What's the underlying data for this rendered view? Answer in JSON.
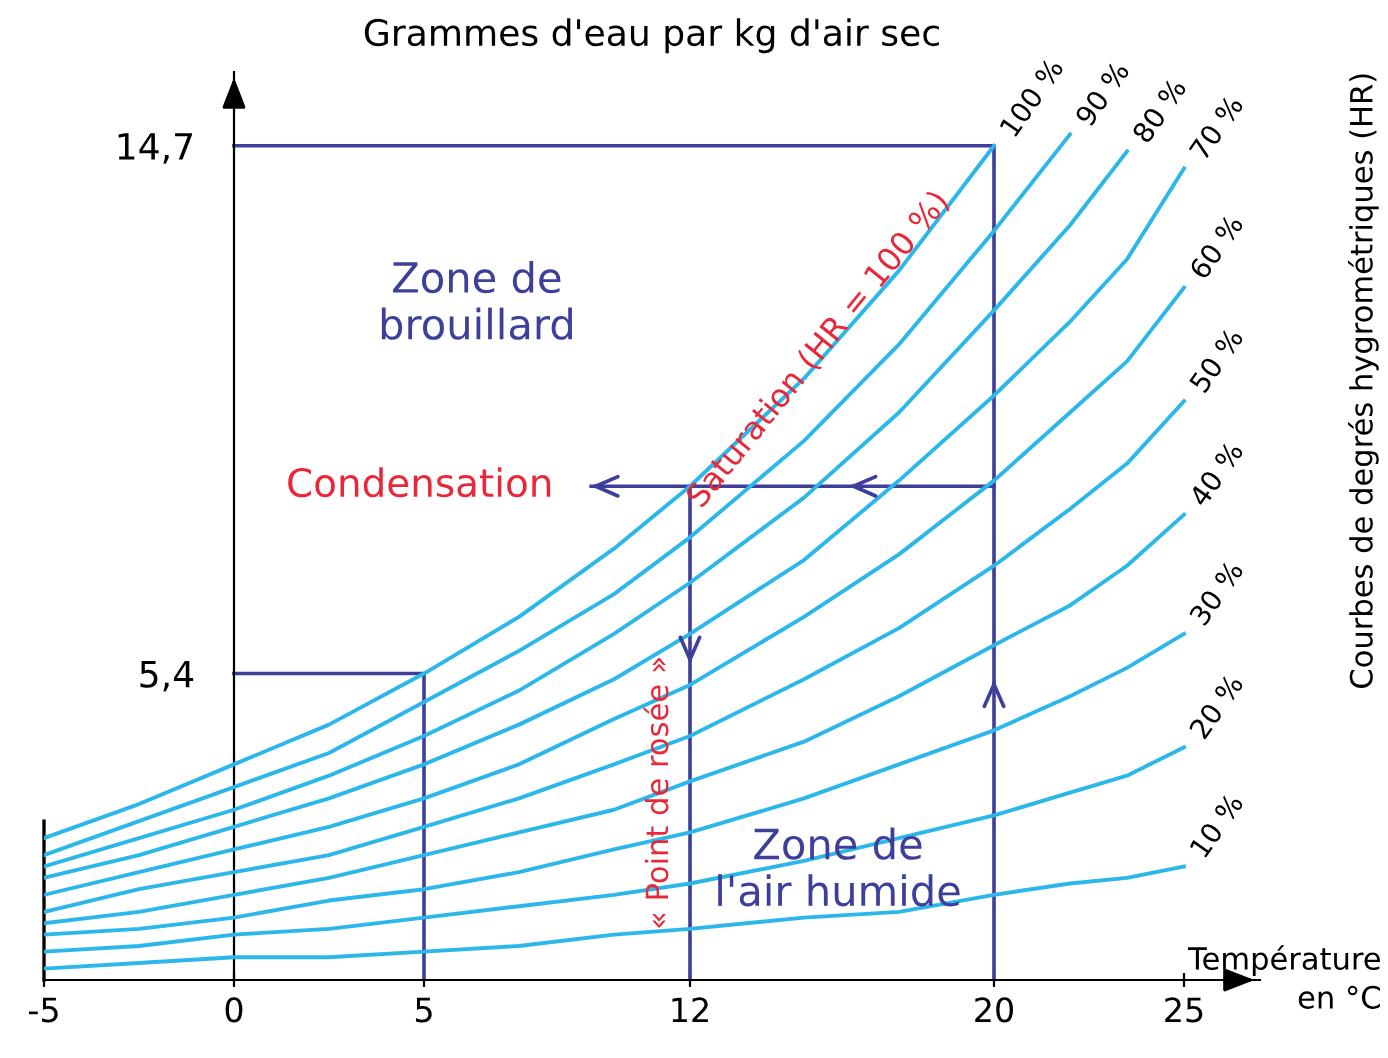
{
  "chart_data": {
    "type": "line",
    "xlabel": "Température\nen °C",
    "ylabel": "Grammes d'eau par kg d'air sec",
    "y2label": "Courbes de degrés hygrométriques (HR)",
    "xlim": [
      -5,
      27
    ],
    "ylim": [
      0,
      16
    ],
    "xticks": [
      -5,
      0,
      5,
      12,
      20,
      25
    ],
    "yticks": [
      {
        "value": 5.4,
        "label": "5,4"
      },
      {
        "value": 14.7,
        "label": "14,7"
      }
    ],
    "grid": false,
    "legend": false,
    "marker": "none",
    "line_style": "solid",
    "series": [
      {
        "name": "100 %",
        "color": "#2cb7ea",
        "x": [
          -5,
          -2.5,
          0,
          2.5,
          5,
          7.5,
          10,
          12,
          15,
          17.5,
          20
        ],
        "values": [
          2.5,
          3.1,
          3.8,
          4.5,
          5.4,
          6.4,
          7.6,
          8.7,
          10.6,
          12.5,
          14.7
        ]
      },
      {
        "name": "90 %",
        "color": "#2cb7ea",
        "x": [
          -5,
          -2.5,
          0,
          2.5,
          5,
          7.5,
          10,
          12,
          15,
          17.5,
          20,
          22
        ],
        "values": [
          2.2,
          2.8,
          3.4,
          4.0,
          4.9,
          5.8,
          6.8,
          7.8,
          9.5,
          11.2,
          13.2,
          14.9
        ]
      },
      {
        "name": "80 %",
        "color": "#2cb7ea",
        "x": [
          -5,
          -2.5,
          0,
          2.5,
          5,
          7.5,
          10,
          12,
          15,
          17.5,
          20,
          22,
          23.5
        ],
        "values": [
          2.0,
          2.5,
          3.0,
          3.6,
          4.3,
          5.1,
          6.1,
          7.0,
          8.5,
          10.0,
          11.8,
          13.3,
          14.6
        ]
      },
      {
        "name": "70 %",
        "color": "#2cb7ea",
        "x": [
          -5,
          -2.5,
          0,
          2.5,
          5,
          7.5,
          10,
          12,
          15,
          17.5,
          20,
          22,
          23.5,
          25
        ],
        "values": [
          1.8,
          2.2,
          2.7,
          3.2,
          3.8,
          4.5,
          5.3,
          6.1,
          7.4,
          8.8,
          10.3,
          11.6,
          12.7,
          14.3
        ]
      },
      {
        "name": "60 %",
        "color": "#2cb7ea",
        "x": [
          -5,
          -2.5,
          0,
          2.5,
          5,
          7.5,
          10,
          12,
          15,
          17.5,
          20,
          22,
          23.5,
          25
        ],
        "values": [
          1.5,
          1.9,
          2.3,
          2.7,
          3.2,
          3.8,
          4.6,
          5.2,
          6.4,
          7.5,
          8.8,
          10.0,
          10.9,
          12.2
        ]
      },
      {
        "name": "50 %",
        "color": "#2cb7ea",
        "x": [
          -5,
          -2.5,
          0,
          2.5,
          5,
          7.5,
          10,
          12,
          15,
          17.5,
          20,
          22,
          23.5,
          25
        ],
        "values": [
          1.2,
          1.6,
          1.9,
          2.2,
          2.7,
          3.2,
          3.8,
          4.3,
          5.3,
          6.2,
          7.3,
          8.3,
          9.1,
          10.2
        ]
      },
      {
        "name": "40 %",
        "color": "#2cb7ea",
        "x": [
          -5,
          -2.5,
          0,
          2.5,
          5,
          7.5,
          10,
          12,
          15,
          17.5,
          20,
          22,
          23.5,
          25
        ],
        "values": [
          1.0,
          1.2,
          1.5,
          1.8,
          2.2,
          2.6,
          3.0,
          3.5,
          4.2,
          5.0,
          5.9,
          6.6,
          7.3,
          8.2
        ]
      },
      {
        "name": "30 %",
        "color": "#2cb7ea",
        "x": [
          -5,
          -2.5,
          0,
          2.5,
          5,
          7.5,
          10,
          12,
          15,
          17.5,
          20,
          22,
          23.5,
          25
        ],
        "values": [
          0.8,
          0.9,
          1.1,
          1.4,
          1.6,
          1.9,
          2.3,
          2.6,
          3.2,
          3.8,
          4.4,
          5.0,
          5.5,
          6.1
        ]
      },
      {
        "name": "20 %",
        "color": "#2cb7ea",
        "x": [
          -5,
          -2.5,
          0,
          2.5,
          5,
          7.5,
          10,
          12,
          15,
          17.5,
          20,
          22,
          23.5,
          25
        ],
        "values": [
          0.5,
          0.6,
          0.8,
          0.9,
          1.1,
          1.3,
          1.5,
          1.7,
          2.1,
          2.5,
          2.9,
          3.3,
          3.6,
          4.1
        ]
      },
      {
        "name": "10 %",
        "color": "#2cb7ea",
        "x": [
          -5,
          -2.5,
          0,
          2.5,
          5,
          7.5,
          10,
          12,
          15,
          17.5,
          20,
          22,
          23.5,
          25
        ],
        "values": [
          0.2,
          0.3,
          0.4,
          0.4,
          0.5,
          0.6,
          0.8,
          0.9,
          1.1,
          1.2,
          1.5,
          1.7,
          1.8,
          2.0
        ]
      },
      {
        "color": "#3d3f9b",
        "x": [
          20,
          20,
          0
        ],
        "values": [
          0,
          14.7,
          14.7
        ]
      },
      {
        "color": "#3d3f9b",
        "x": [
          0,
          5,
          5
        ],
        "values": [
          5.4,
          5.4,
          0
        ]
      },
      {
        "color": "#3d3f9b",
        "x": [
          20,
          9.4
        ],
        "values": [
          8.7,
          8.7
        ]
      },
      {
        "color": "#3d3f9b",
        "x": [
          12,
          12
        ],
        "values": [
          8.7,
          0
        ]
      }
    ],
    "annotations": [
      "Zone de\nbrouillard",
      "Zone de\nl'air humide",
      "Condensation",
      {
        "text": "Saturation (HR = 100 %)",
        "x": 15.4,
        "y": 11.1
      },
      {
        "text": "« Point de rosée »",
        "x": 11.2,
        "y": 3.3
      }
    ]
  }
}
